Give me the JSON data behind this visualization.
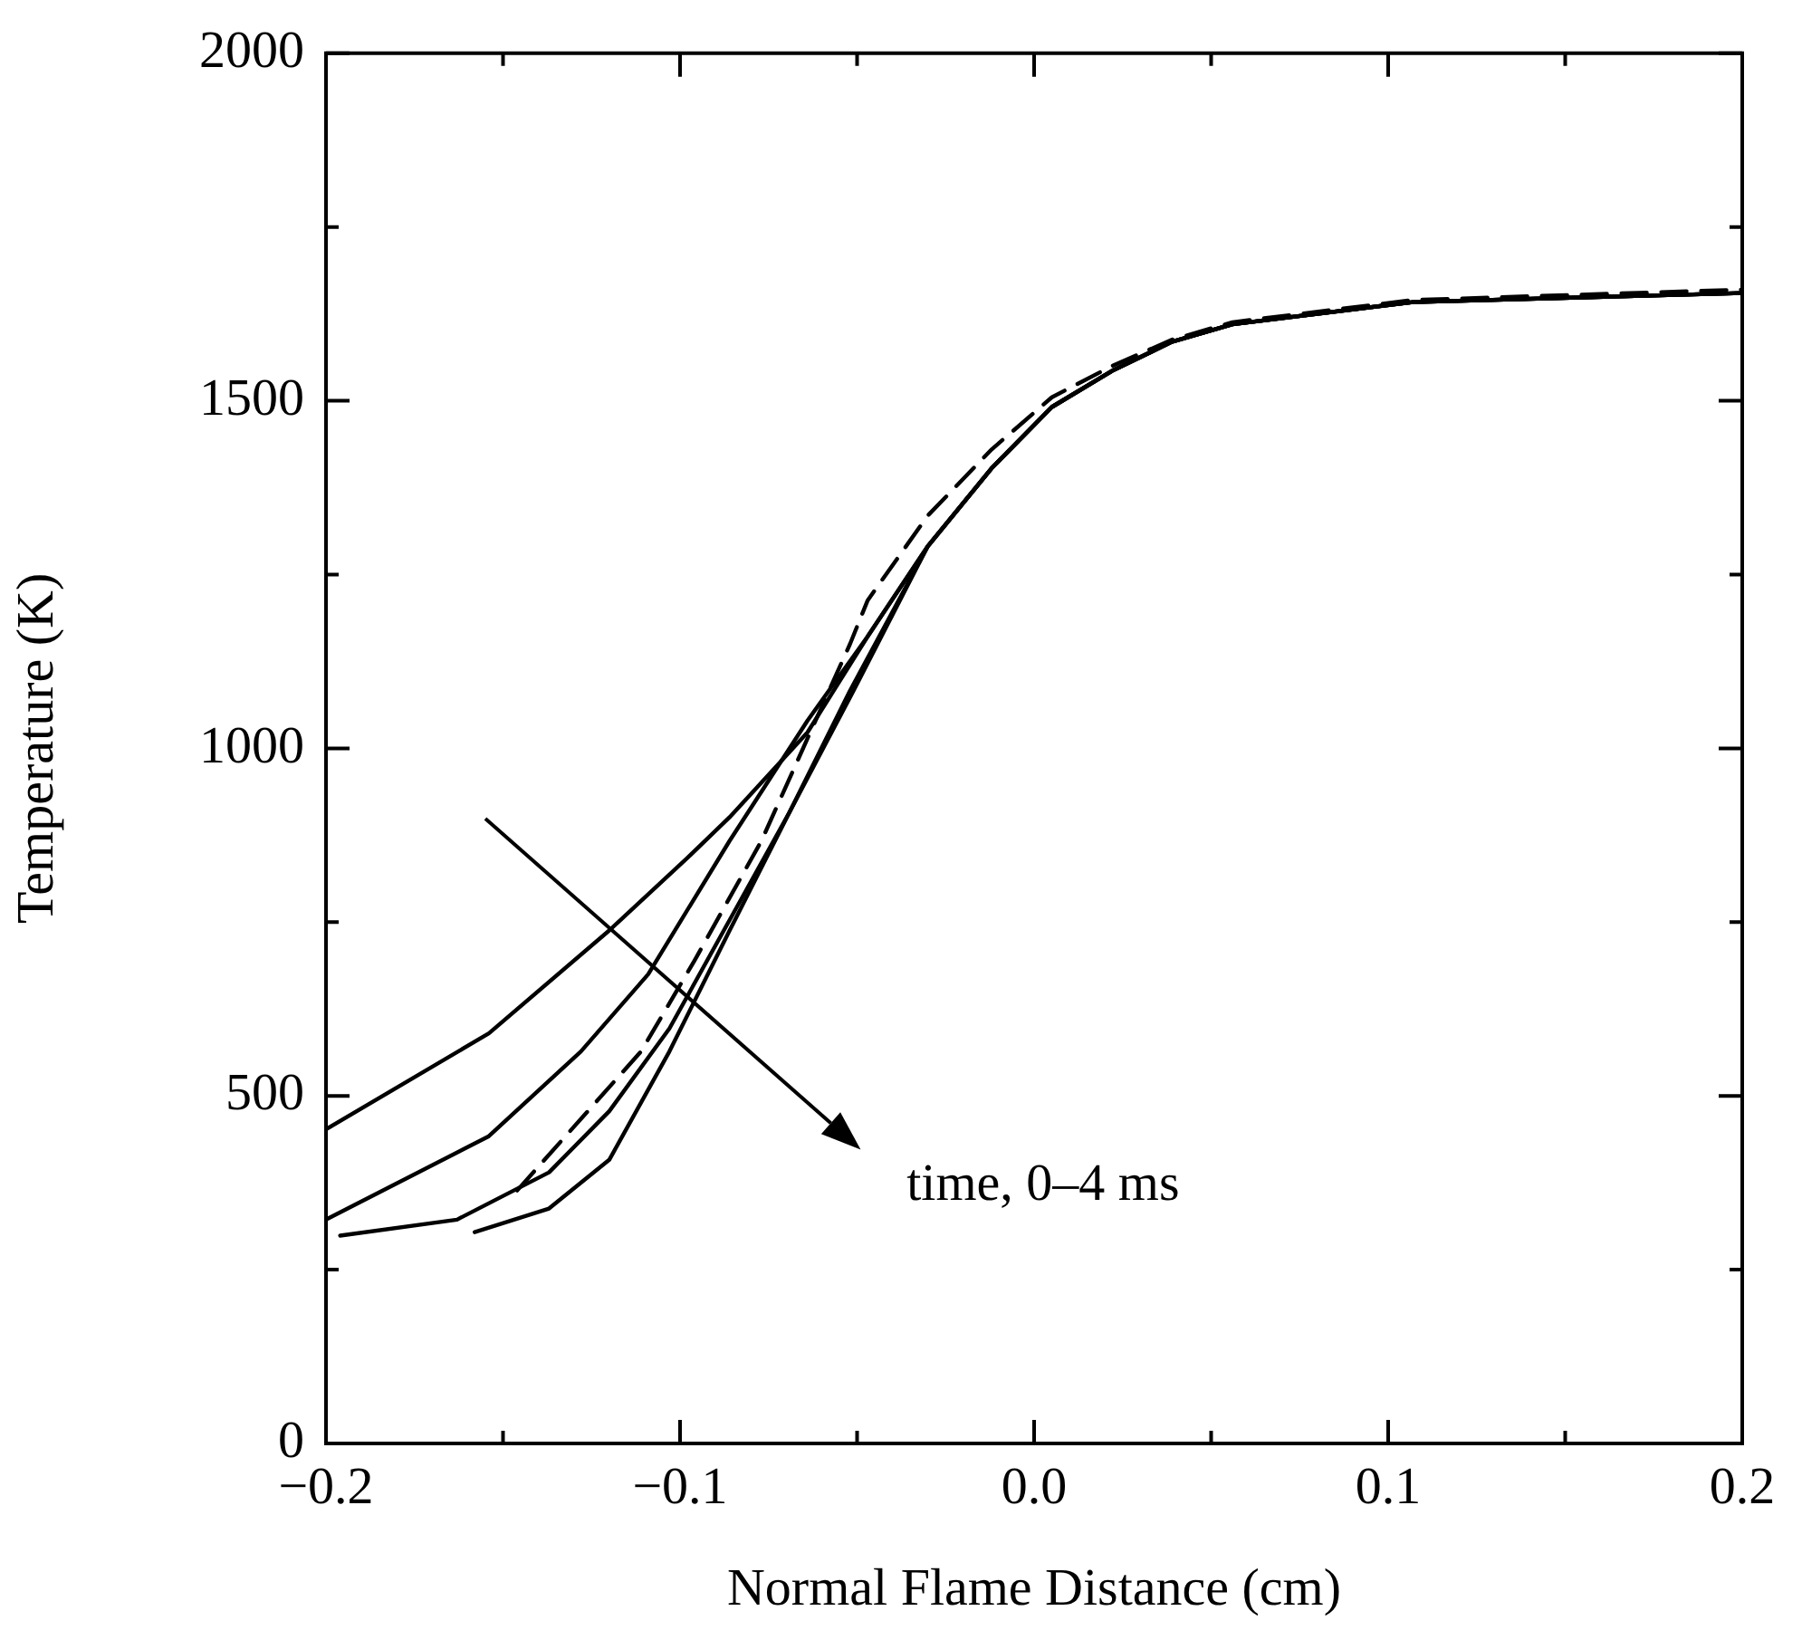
{
  "chart_data": {
    "type": "line",
    "xlabel": "Normal Flame Distance (cm)",
    "ylabel": "Temperature (K)",
    "xlim": [
      -0.2,
      0.2
    ],
    "ylim": [
      0,
      2000
    ],
    "xticks": [
      {
        "value": -0.2,
        "label": "−0.2"
      },
      {
        "value": -0.15,
        "label": null
      },
      {
        "value": -0.1,
        "label": "−0.1"
      },
      {
        "value": -0.05,
        "label": null
      },
      {
        "value": 0,
        "label": "0.0"
      },
      {
        "value": 0.05,
        "label": null
      },
      {
        "value": 0.1,
        "label": "0.1"
      },
      {
        "value": 0.15,
        "label": null
      },
      {
        "value": 0.2,
        "label": "0.2"
      }
    ],
    "yticks": [
      0,
      {
        "value": 250,
        "label": null
      },
      500,
      {
        "value": 750,
        "label": null
      },
      1000,
      {
        "value": 1250,
        "label": null
      },
      1500,
      {
        "value": 1750,
        "label": null
      },
      2000
    ],
    "grid": false,
    "legend": false,
    "marker": "none",
    "annotations": [
      "time, 0–4 ms"
    ],
    "series": [
      {
        "color": "#000000",
        "line_style": "solid",
        "x": [
          -0.2,
          -0.154,
          -0.12,
          -0.098,
          -0.086,
          -0.064,
          -0.047,
          -0.03,
          -0.012,
          0.005,
          0.022,
          0.039,
          0.056,
          0.107,
          0.2
        ],
        "values": [
          452,
          590,
          738,
          842,
          901,
          1023,
          1161,
          1291,
          1403,
          1491,
          1543,
          1585,
          1610,
          1642,
          1655
        ]
      },
      {
        "color": "#000000",
        "line_style": "solid",
        "x": [
          -0.2,
          -0.154,
          -0.128,
          -0.109,
          -0.086,
          -0.064,
          -0.047,
          -0.03,
          -0.012,
          0.005,
          0.022,
          0.039,
          0.056,
          0.107,
          0.2
        ],
        "values": [
          322,
          442,
          564,
          675,
          867,
          1040,
          1161,
          1291,
          1403,
          1491,
          1543,
          1585,
          1610,
          1642,
          1655
        ]
      },
      {
        "color": "#000000",
        "line_style": "solid",
        "x": [
          -0.196,
          -0.163,
          -0.137,
          -0.12,
          -0.103,
          -0.086,
          -0.069,
          -0.052,
          -0.03,
          -0.012,
          0.005,
          0.022,
          0.039,
          0.056,
          0.107,
          0.2
        ],
        "values": [
          299,
          322,
          390,
          478,
          597,
          753,
          909,
          1083,
          1291,
          1403,
          1491,
          1543,
          1585,
          1610,
          1642,
          1655
        ]
      },
      {
        "color": "#000000",
        "line_style": "dashed",
        "x": [
          -0.146,
          -0.111,
          -0.096,
          -0.077,
          -0.052,
          -0.047,
          -0.03,
          -0.012,
          0.005,
          0.022,
          0.039,
          0.056,
          0.107,
          0.2
        ],
        "values": [
          364,
          564,
          694,
          867,
          1150,
          1213,
          1335,
          1430,
          1505,
          1550,
          1588,
          1613,
          1645,
          1660
        ]
      },
      {
        "color": "#000000",
        "line_style": "solid",
        "x": [
          -0.158,
          -0.137,
          -0.12,
          -0.103,
          -0.086,
          -0.069,
          -0.051,
          -0.03,
          -0.012,
          0.005,
          0.022,
          0.039,
          0.056,
          0.107,
          0.2
        ],
        "values": [
          304,
          338,
          408,
          564,
          738,
          909,
          1083,
          1291,
          1403,
          1491,
          1543,
          1585,
          1610,
          1642,
          1655
        ]
      }
    ]
  }
}
